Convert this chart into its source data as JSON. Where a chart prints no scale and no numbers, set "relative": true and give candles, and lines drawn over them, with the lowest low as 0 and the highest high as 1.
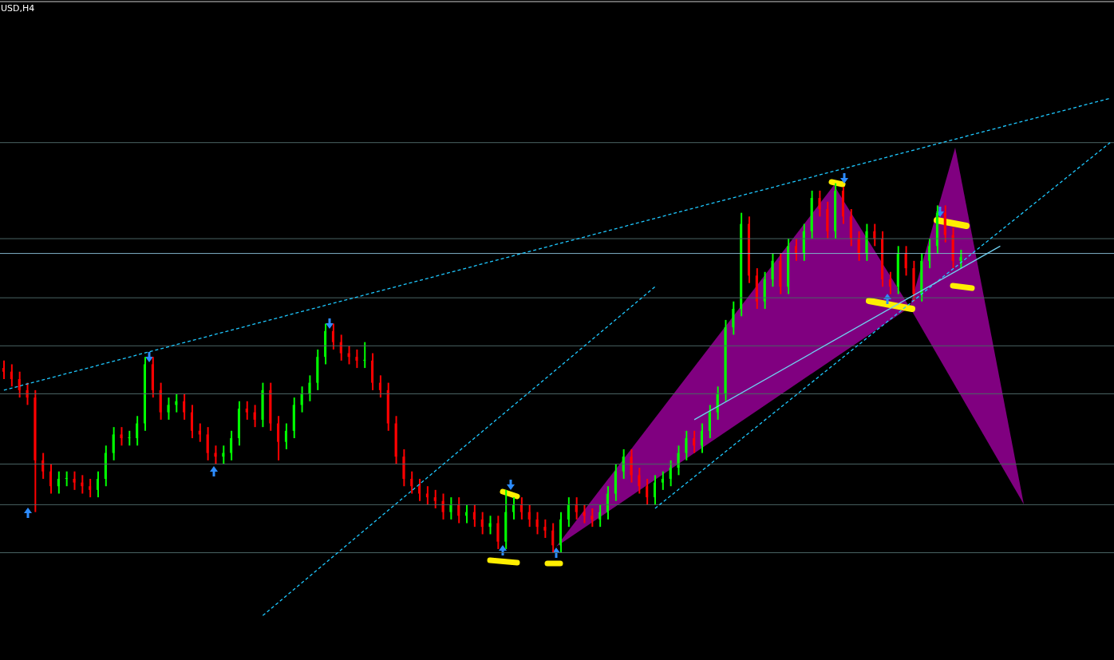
{
  "chart_data": {
    "type": "candlestick",
    "title": "USD,H4",
    "relative": true,
    "categories": [
      null,
      null,
      null,
      null,
      null,
      null,
      null,
      null,
      null,
      null,
      null,
      null,
      null,
      null,
      null,
      null,
      null,
      null,
      null,
      null,
      null,
      null,
      null,
      null,
      null,
      null,
      null,
      null,
      null,
      null,
      null,
      null,
      null,
      null,
      null,
      null,
      null,
      null,
      null,
      null,
      null,
      null,
      null,
      null,
      null,
      null,
      null,
      null,
      null,
      null,
      null,
      null,
      null,
      null,
      null,
      null,
      null,
      null,
      null,
      null,
      null,
      null,
      null,
      null,
      null,
      null,
      null,
      null,
      null,
      null,
      null,
      null,
      null,
      null,
      null,
      null,
      null,
      null,
      null,
      null,
      null,
      null,
      null,
      null,
      null,
      null,
      null,
      null,
      null,
      null,
      null,
      null,
      null,
      null,
      null,
      null,
      null,
      null,
      null,
      null,
      null,
      null,
      null,
      null,
      null,
      null,
      null,
      null,
      null,
      null,
      null,
      null,
      null,
      null,
      null,
      null,
      null,
      null,
      null,
      null,
      null,
      null,
      null,
      null,
      null,
      null,
      null,
      null,
      null,
      null,
      null,
      null,
      null,
      null,
      null,
      null,
      null,
      null,
      null,
      null,
      null,
      null
    ],
    "ohlc": [
      [
        0.5,
        0.52,
        0.47,
        0.49
      ],
      [
        0.49,
        0.51,
        0.45,
        0.47
      ],
      [
        0.47,
        0.49,
        0.42,
        0.44
      ],
      [
        0.44,
        0.46,
        0.4,
        0.42
      ],
      [
        0.42,
        0.44,
        0.11,
        0.25
      ],
      [
        0.25,
        0.27,
        0.2,
        0.22
      ],
      [
        0.22,
        0.24,
        0.16,
        0.18
      ],
      [
        0.18,
        0.22,
        0.16,
        0.2
      ],
      [
        0.2,
        0.22,
        0.18,
        0.2
      ],
      [
        0.2,
        0.22,
        0.17,
        0.19
      ],
      [
        0.19,
        0.21,
        0.16,
        0.18
      ],
      [
        0.18,
        0.2,
        0.15,
        0.17
      ],
      [
        0.17,
        0.22,
        0.15,
        0.2
      ],
      [
        0.2,
        0.29,
        0.18,
        0.27
      ],
      [
        0.27,
        0.34,
        0.25,
        0.32
      ],
      [
        0.32,
        0.34,
        0.29,
        0.31
      ],
      [
        0.31,
        0.33,
        0.29,
        0.31
      ],
      [
        0.31,
        0.37,
        0.29,
        0.35
      ],
      [
        0.35,
        0.53,
        0.33,
        0.51
      ],
      [
        0.51,
        0.53,
        0.42,
        0.44
      ],
      [
        0.44,
        0.46,
        0.36,
        0.38
      ],
      [
        0.38,
        0.42,
        0.36,
        0.4
      ],
      [
        0.4,
        0.43,
        0.38,
        0.41
      ],
      [
        0.41,
        0.43,
        0.36,
        0.38
      ],
      [
        0.38,
        0.4,
        0.31,
        0.33
      ],
      [
        0.33,
        0.35,
        0.3,
        0.32
      ],
      [
        0.32,
        0.34,
        0.25,
        0.27
      ],
      [
        0.27,
        0.29,
        0.24,
        0.26
      ],
      [
        0.26,
        0.29,
        0.24,
        0.27
      ],
      [
        0.27,
        0.33,
        0.25,
        0.31
      ],
      [
        0.31,
        0.41,
        0.29,
        0.39
      ],
      [
        0.39,
        0.41,
        0.36,
        0.38
      ],
      [
        0.38,
        0.4,
        0.34,
        0.36
      ],
      [
        0.36,
        0.46,
        0.34,
        0.44
      ],
      [
        0.44,
        0.46,
        0.33,
        0.35
      ],
      [
        0.35,
        0.37,
        0.25,
        0.3
      ],
      [
        0.3,
        0.35,
        0.28,
        0.33
      ],
      [
        0.33,
        0.42,
        0.31,
        0.4
      ],
      [
        0.4,
        0.45,
        0.38,
        0.43
      ],
      [
        0.43,
        0.48,
        0.41,
        0.46
      ],
      [
        0.46,
        0.55,
        0.44,
        0.53
      ],
      [
        0.53,
        0.62,
        0.51,
        0.6
      ],
      [
        0.6,
        0.62,
        0.55,
        0.57
      ],
      [
        0.57,
        0.59,
        0.52,
        0.54
      ],
      [
        0.54,
        0.56,
        0.51,
        0.53
      ],
      [
        0.53,
        0.55,
        0.5,
        0.52
      ],
      [
        0.52,
        0.57,
        0.5,
        0.52
      ],
      [
        0.52,
        0.54,
        0.44,
        0.46
      ],
      [
        0.46,
        0.48,
        0.42,
        0.44
      ],
      [
        0.44,
        0.46,
        0.33,
        0.35
      ],
      [
        0.35,
        0.37,
        0.24,
        0.26
      ],
      [
        0.26,
        0.28,
        0.18,
        0.2
      ],
      [
        0.2,
        0.22,
        0.16,
        0.18
      ],
      [
        0.18,
        0.2,
        0.14,
        0.16
      ],
      [
        0.16,
        0.18,
        0.13,
        0.15
      ],
      [
        0.15,
        0.17,
        0.12,
        0.14
      ],
      [
        0.14,
        0.16,
        0.09,
        0.11
      ],
      [
        0.11,
        0.15,
        0.09,
        0.13
      ],
      [
        0.13,
        0.15,
        0.08,
        0.1
      ],
      [
        0.1,
        0.13,
        0.08,
        0.11
      ],
      [
        0.11,
        0.13,
        0.07,
        0.09
      ],
      [
        0.09,
        0.11,
        0.05,
        0.07
      ],
      [
        0.07,
        0.1,
        0.05,
        0.08
      ],
      [
        0.08,
        0.1,
        0.01,
        0.03
      ],
      [
        0.03,
        0.17,
        0.01,
        0.11
      ],
      [
        0.11,
        0.15,
        0.09,
        0.13
      ],
      [
        0.13,
        0.15,
        0.09,
        0.11
      ],
      [
        0.11,
        0.13,
        0.07,
        0.09
      ],
      [
        0.09,
        0.11,
        0.05,
        0.07
      ],
      [
        0.07,
        0.09,
        0.04,
        0.06
      ],
      [
        0.06,
        0.08,
        0.0,
        0.02
      ],
      [
        0.02,
        0.11,
        0.0,
        0.09
      ],
      [
        0.09,
        0.15,
        0.07,
        0.13
      ],
      [
        0.13,
        0.15,
        0.09,
        0.11
      ],
      [
        0.11,
        0.13,
        0.08,
        0.1
      ],
      [
        0.1,
        0.12,
        0.07,
        0.09
      ],
      [
        0.09,
        0.13,
        0.07,
        0.11
      ],
      [
        0.11,
        0.18,
        0.09,
        0.16
      ],
      [
        0.16,
        0.24,
        0.14,
        0.22
      ],
      [
        0.22,
        0.28,
        0.2,
        0.26
      ],
      [
        0.26,
        0.28,
        0.19,
        0.21
      ],
      [
        0.21,
        0.23,
        0.16,
        0.18
      ],
      [
        0.18,
        0.2,
        0.13,
        0.15
      ],
      [
        0.15,
        0.21,
        0.13,
        0.19
      ],
      [
        0.19,
        0.22,
        0.17,
        0.2
      ],
      [
        0.2,
        0.25,
        0.18,
        0.23
      ],
      [
        0.23,
        0.29,
        0.21,
        0.27
      ],
      [
        0.27,
        0.33,
        0.25,
        0.31
      ],
      [
        0.31,
        0.33,
        0.27,
        0.29
      ],
      [
        0.29,
        0.35,
        0.27,
        0.33
      ],
      [
        0.33,
        0.4,
        0.31,
        0.38
      ],
      [
        0.38,
        0.45,
        0.36,
        0.43
      ],
      [
        0.43,
        0.63,
        0.41,
        0.61
      ],
      [
        0.61,
        0.68,
        0.59,
        0.66
      ],
      [
        0.66,
        0.92,
        0.64,
        0.89
      ],
      [
        0.89,
        0.91,
        0.73,
        0.75
      ],
      [
        0.75,
        0.77,
        0.66,
        0.68
      ],
      [
        0.68,
        0.76,
        0.66,
        0.74
      ],
      [
        0.74,
        0.81,
        0.72,
        0.79
      ],
      [
        0.79,
        0.81,
        0.7,
        0.72
      ],
      [
        0.72,
        0.85,
        0.7,
        0.83
      ],
      [
        0.83,
        0.85,
        0.79,
        0.81
      ],
      [
        0.81,
        0.89,
        0.79,
        0.87
      ],
      [
        0.87,
        0.98,
        0.85,
        0.96
      ],
      [
        0.96,
        0.98,
        0.91,
        0.93
      ],
      [
        0.93,
        0.95,
        0.85,
        0.87
      ],
      [
        0.87,
        1.0,
        0.85,
        0.98
      ],
      [
        0.98,
        0.99,
        0.89,
        0.91
      ],
      [
        0.91,
        0.93,
        0.83,
        0.85
      ],
      [
        0.85,
        0.87,
        0.79,
        0.81
      ],
      [
        0.81,
        0.89,
        0.79,
        0.87
      ],
      [
        0.87,
        0.89,
        0.83,
        0.85
      ],
      [
        0.85,
        0.87,
        0.72,
        0.74
      ],
      [
        0.74,
        0.76,
        0.7,
        0.72
      ],
      [
        0.72,
        0.83,
        0.7,
        0.81
      ],
      [
        0.81,
        0.83,
        0.75,
        0.77
      ],
      [
        0.77,
        0.79,
        0.68,
        0.7
      ],
      [
        0.7,
        0.81,
        0.68,
        0.79
      ],
      [
        0.79,
        0.85,
        0.77,
        0.83
      ],
      [
        0.83,
        0.94,
        0.81,
        0.92
      ],
      [
        0.92,
        0.94,
        0.84,
        0.86
      ],
      [
        0.86,
        0.88,
        0.77,
        0.79
      ],
      [
        0.79,
        0.82,
        0.77,
        0.8
      ],
      null,
      null,
      null,
      null,
      null,
      null,
      null,
      null,
      null,
      null,
      null,
      null,
      null,
      null,
      null,
      null,
      null,
      null,
      null
    ],
    "series": [
      {
        "type": "line",
        "color": "#1ec8ff",
        "line_style": "dashed",
        "values": [
          0.44,
          null,
          null,
          null,
          null,
          null,
          null,
          null,
          null,
          null,
          null,
          null,
          null,
          null,
          null,
          null,
          null,
          null,
          null,
          null,
          null,
          null,
          null,
          null,
          null,
          null,
          null,
          null,
          null,
          null,
          null,
          null,
          null,
          null,
          null,
          null,
          null,
          null,
          null,
          null,
          null,
          null,
          null,
          null,
          null,
          null,
          null,
          null,
          null,
          null,
          null,
          null,
          null,
          null,
          null,
          null,
          null,
          null,
          null,
          null,
          null,
          null,
          null,
          null,
          null,
          null,
          null,
          null,
          null,
          null,
          null,
          null,
          null,
          null,
          null,
          null,
          null,
          null,
          null,
          null,
          null,
          null,
          null,
          null,
          null,
          null,
          null,
          null,
          null,
          null,
          null,
          null,
          null,
          null,
          null,
          null,
          null,
          null,
          null,
          null,
          null,
          null,
          null,
          null,
          null,
          null,
          null,
          null,
          null,
          null,
          null,
          null,
          null,
          null,
          null,
          null,
          null,
          null,
          null,
          null,
          null,
          null,
          null,
          null,
          null,
          null,
          null,
          null,
          null,
          null,
          null,
          null,
          null,
          null,
          null,
          null,
          null,
          null,
          null,
          null,
          null,
          1.23
        ]
      },
      {
        "type": "line",
        "color": "#1ec8ff",
        "line_style": "dashed",
        "values": [
          null,
          null,
          null,
          null,
          null,
          null,
          null,
          null,
          null,
          null,
          null,
          null,
          null,
          null,
          null,
          null,
          null,
          null,
          null,
          null,
          null,
          null,
          null,
          null,
          null,
          null,
          null,
          null,
          null,
          null,
          null,
          null,
          null,
          -0.17,
          null,
          null,
          null,
          null,
          null,
          null,
          null,
          null,
          null,
          null,
          null,
          null,
          null,
          null,
          null,
          null,
          null,
          null,
          null,
          null,
          null,
          null,
          null,
          null,
          null,
          null,
          null,
          null,
          null,
          null,
          null,
          null,
          null,
          null,
          null,
          null,
          null,
          null,
          null,
          null,
          null,
          null,
          null,
          null,
          null,
          null,
          null,
          null,
          null,
          0.72,
          null,
          null,
          null,
          null,
          null,
          null,
          null,
          null,
          null,
          null,
          null,
          null,
          null,
          null,
          null,
          null,
          null,
          null,
          null,
          null,
          null,
          null,
          null,
          null,
          null,
          null,
          null,
          null,
          null,
          null,
          null,
          null,
          null,
          null,
          null,
          null,
          null,
          null,
          null,
          null,
          null,
          null,
          null,
          null,
          null,
          null,
          null,
          null,
          null,
          null,
          null,
          null,
          null,
          null,
          null,
          null,
          null,
          null
        ]
      },
      {
        "type": "line",
        "color": "#1ec8ff",
        "line_style": "dashed",
        "values": [
          null,
          null,
          null,
          null,
          null,
          null,
          null,
          null,
          null,
          null,
          null,
          null,
          null,
          null,
          null,
          null,
          null,
          null,
          null,
          null,
          null,
          null,
          null,
          null,
          null,
          null,
          null,
          null,
          null,
          null,
          null,
          null,
          null,
          null,
          null,
          null,
          null,
          null,
          null,
          null,
          null,
          null,
          null,
          null,
          null,
          null,
          null,
          null,
          null,
          null,
          null,
          null,
          null,
          null,
          null,
          null,
          null,
          null,
          null,
          null,
          null,
          null,
          null,
          null,
          null,
          null,
          null,
          null,
          null,
          null,
          null,
          null,
          null,
          null,
          null,
          null,
          null,
          null,
          null,
          null,
          null,
          null,
          null,
          0.12,
          null,
          null,
          null,
          null,
          null,
          null,
          null,
          null,
          null,
          null,
          null,
          null,
          null,
          null,
          null,
          null,
          null,
          null,
          null,
          null,
          null,
          null,
          null,
          null,
          null,
          null,
          null,
          null,
          null,
          null,
          null,
          null,
          null,
          null,
          null,
          null,
          null,
          null,
          null,
          null,
          null,
          null,
          null,
          null,
          null,
          null,
          null,
          null,
          null,
          null,
          null,
          null,
          null,
          null,
          null,
          null,
          null,
          1.11
        ]
      },
      {
        "type": "line",
        "color": "#6fd0f0",
        "line_style": "solid",
        "values": [
          null,
          null,
          null,
          null,
          null,
          null,
          null,
          null,
          null,
          null,
          null,
          null,
          null,
          null,
          null,
          null,
          null,
          null,
          null,
          null,
          null,
          null,
          null,
          null,
          null,
          null,
          null,
          null,
          null,
          null,
          null,
          null,
          null,
          null,
          null,
          null,
          null,
          null,
          null,
          null,
          null,
          null,
          null,
          null,
          null,
          null,
          null,
          null,
          null,
          null,
          null,
          null,
          null,
          null,
          null,
          null,
          null,
          null,
          null,
          null,
          null,
          null,
          null,
          null,
          null,
          null,
          null,
          null,
          null,
          null,
          null,
          null,
          null,
          null,
          null,
          null,
          null,
          null,
          null,
          null,
          null,
          null,
          null,
          null,
          null,
          null,
          null,
          null,
          0.36,
          null,
          null,
          null,
          null,
          null,
          null,
          null,
          null,
          null,
          null,
          null,
          null,
          null,
          null,
          null,
          null,
          null,
          null,
          null,
          null,
          null,
          null,
          null,
          null,
          null,
          null,
          null,
          null,
          null,
          null,
          null,
          null,
          null,
          null,
          null,
          null,
          null,
          null,
          0.83,
          null,
          null,
          null,
          null,
          null,
          null,
          null,
          null,
          null,
          null,
          null,
          null,
          null,
          null
        ]
      }
    ],
    "ref_lines": [
      {
        "axis": "y",
        "value": 1.11,
        "color": "#4a6464"
      },
      {
        "axis": "y",
        "value": 0.85,
        "color": "#4a6464"
      },
      {
        "axis": "y",
        "value": 0.81,
        "color": "#7fb0c8"
      },
      {
        "axis": "y",
        "value": 0.69,
        "color": "#4a6464"
      },
      {
        "axis": "y",
        "value": 0.56,
        "color": "#4a6464"
      },
      {
        "axis": "y",
        "value": 0.43,
        "color": "#4a6464"
      },
      {
        "axis": "y",
        "value": 0.24,
        "color": "#4a6464"
      },
      {
        "axis": "y",
        "value": 0.13,
        "color": "#4a6464"
      },
      {
        "axis": "y",
        "value": 0.0,
        "color": "#4a6464"
      }
    ]
  }
}
